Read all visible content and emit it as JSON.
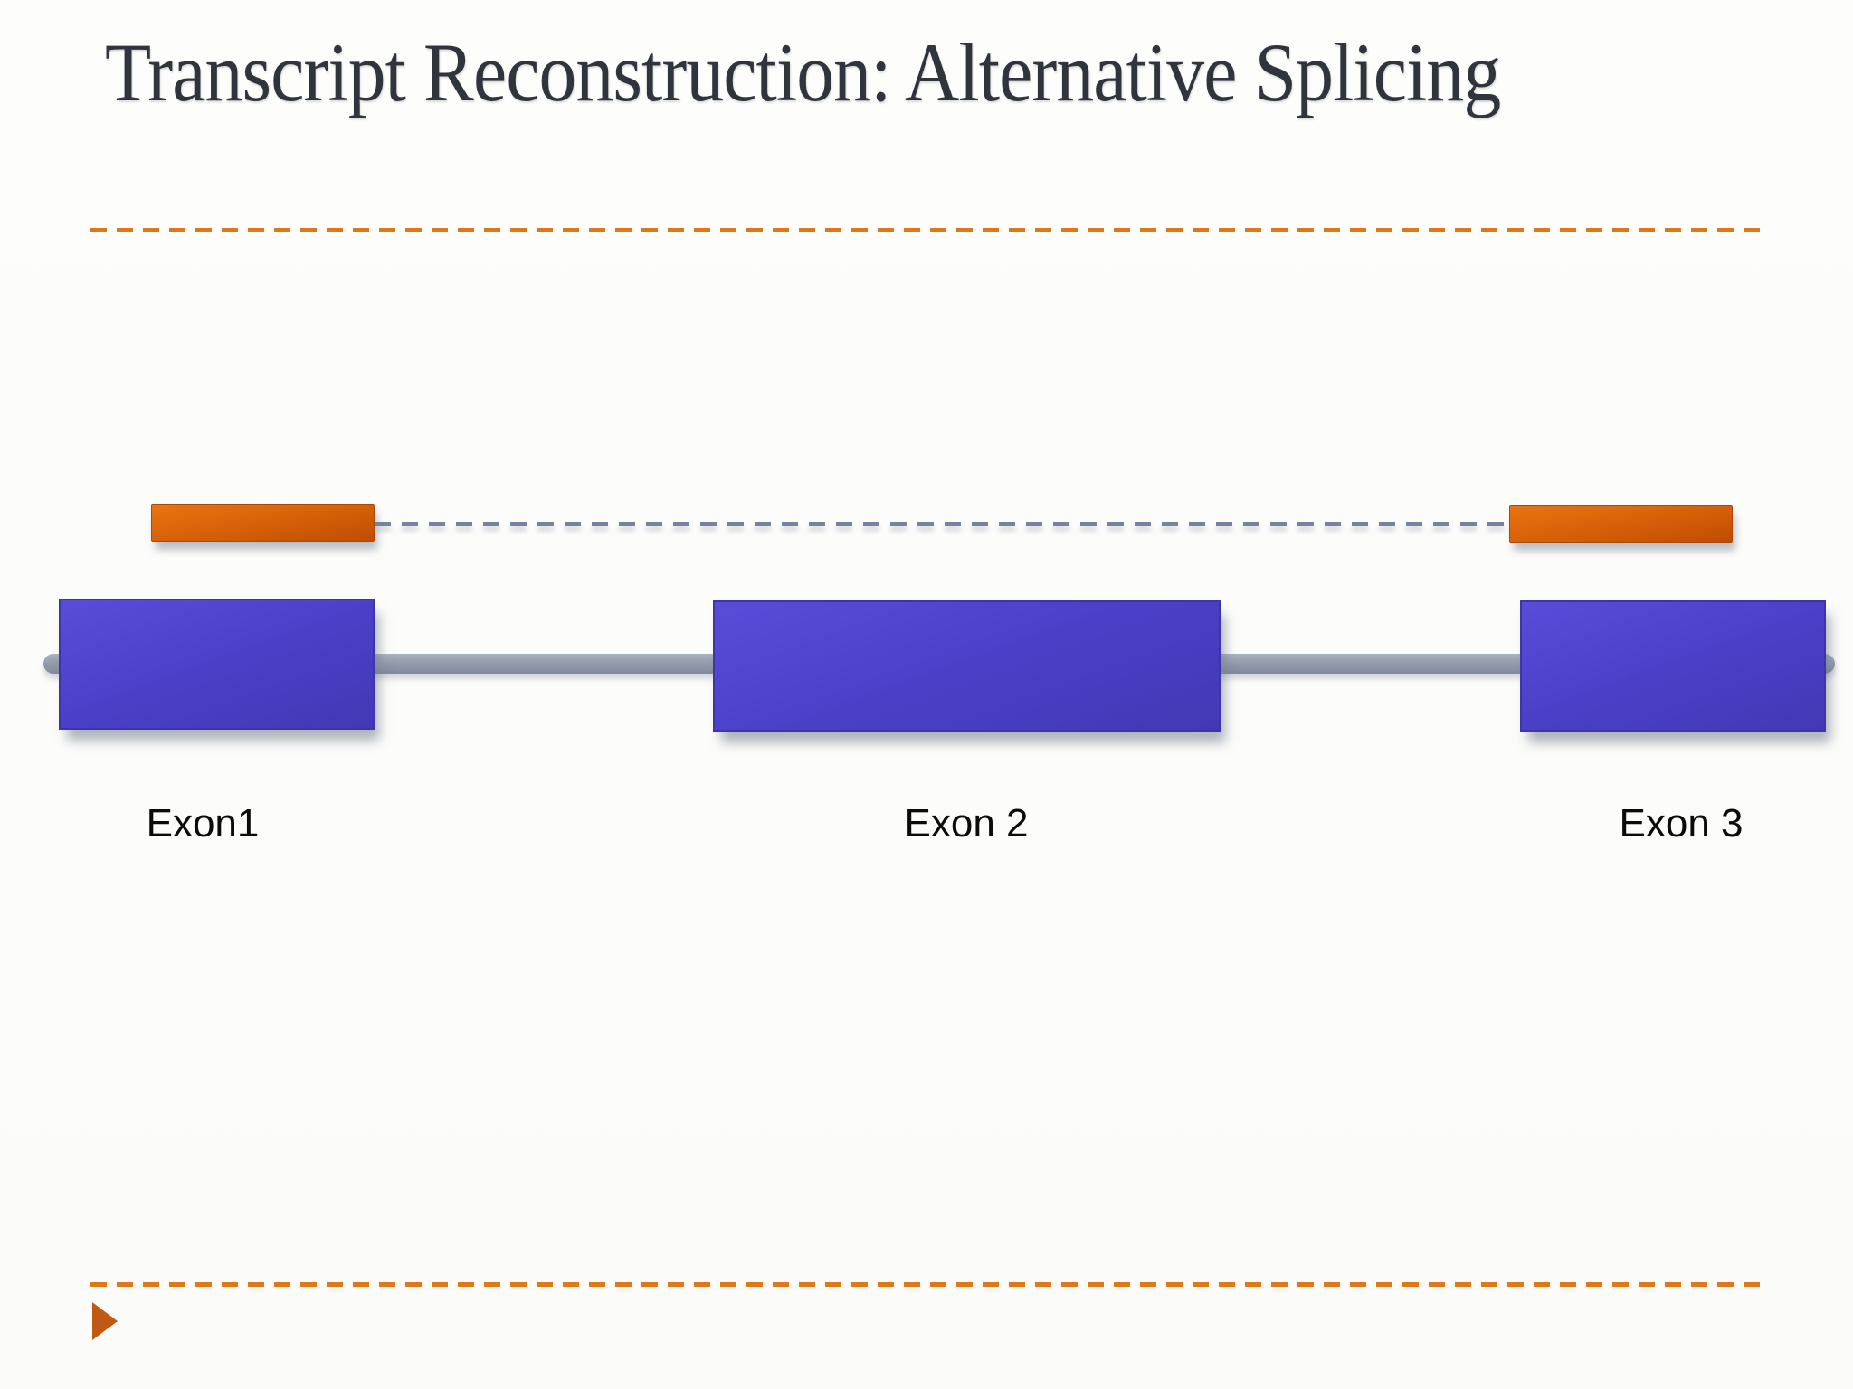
{
  "slide": {
    "title": "Transcript Reconstruction: Alternative Splicing"
  },
  "diagram": {
    "exon_labels": [
      "Exon1",
      "Exon 2",
      "Exon 3"
    ],
    "icons": {
      "footer_bullet": "right-triangle-icon"
    },
    "colors": {
      "title_text": "#30343c",
      "divider_orange": "#e07818",
      "read_fragment_orange": "#d55f08",
      "exon_blue": "#4b41ca",
      "exon_border_blue": "#3e35a6",
      "intron_line_gray": "#939db0",
      "splice_dash_gray": "#76839b",
      "label_text": "#0b0b0b",
      "background": "#fdfdfc"
    }
  }
}
